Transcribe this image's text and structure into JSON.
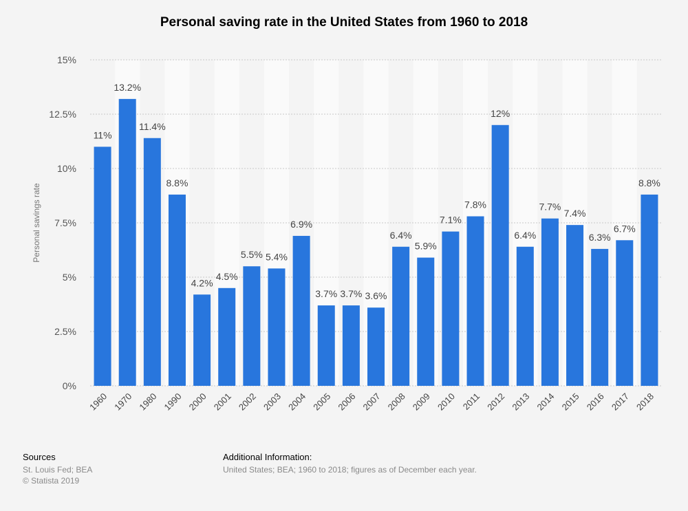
{
  "chart_data": {
    "type": "bar",
    "title": "Personal saving rate in the United States from 1960 to 2018",
    "xlabel": "",
    "ylabel": "Personal savings rate",
    "ylim": [
      0,
      15
    ],
    "yticks": [
      "0%",
      "2.5%",
      "5%",
      "7.5%",
      "10%",
      "12.5%",
      "15%"
    ],
    "ytick_values": [
      0,
      2.5,
      5,
      7.5,
      10,
      12.5,
      15
    ],
    "grid": true,
    "bar_color": "#2876dd",
    "categories": [
      "1960",
      "1970",
      "1980",
      "1990",
      "2000",
      "2001",
      "2002",
      "2003",
      "2004",
      "2005",
      "2006",
      "2007",
      "2008",
      "2009",
      "2010",
      "2011",
      "2012",
      "2013",
      "2014",
      "2015",
      "2016",
      "2017",
      "2018"
    ],
    "values": [
      11,
      13.2,
      11.4,
      8.8,
      4.2,
      4.5,
      5.5,
      5.4,
      6.9,
      3.7,
      3.7,
      3.6,
      6.4,
      5.9,
      7.1,
      7.8,
      12,
      6.4,
      7.7,
      7.4,
      6.3,
      6.7,
      8.8
    ],
    "data_labels": [
      "11%",
      "13.2%",
      "11.4%",
      "8.8%",
      "4.2%",
      "4.5%",
      "5.5%",
      "5.4%",
      "6.9%",
      "3.7%",
      "3.7%",
      "3.6%",
      "6.4%",
      "5.9%",
      "7.1%",
      "7.8%",
      "12%",
      "6.4%",
      "7.7%",
      "7.4%",
      "6.3%",
      "6.7%",
      "8.8%"
    ]
  },
  "footer": {
    "sources_heading": "Sources",
    "sources_text": "St. Louis Fed; BEA",
    "copyright": "© Statista 2019",
    "additional_heading": "Additional Information:",
    "additional_text": "United States; BEA; 1960 to 2018; figures as of December each year."
  }
}
